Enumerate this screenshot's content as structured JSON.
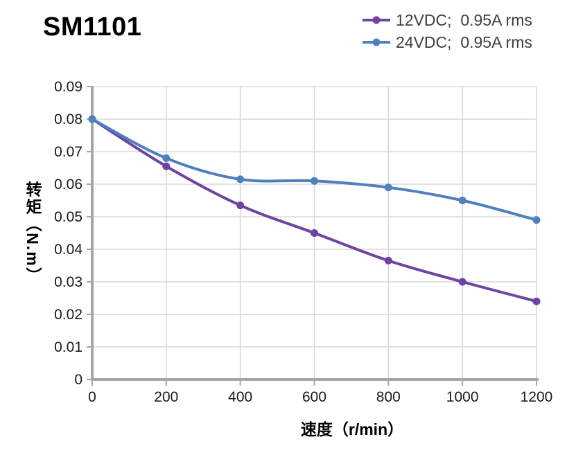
{
  "header": {
    "title": "SM1101"
  },
  "chart_data": {
    "type": "line",
    "title": "SM1101",
    "xlabel": "速度（r/min）",
    "ylabel": "转矩（N.m）",
    "x": [
      0,
      200,
      400,
      600,
      800,
      1000,
      1200
    ],
    "series": [
      {
        "name": "12VDC;  0.95A rms",
        "color": "#7042a3",
        "values": [
          0.08,
          0.0655,
          0.0535,
          0.045,
          0.0365,
          0.03,
          0.024
        ]
      },
      {
        "name": "24VDC;  0.95A rms",
        "color": "#4e80be",
        "values": [
          0.08,
          0.068,
          0.0615,
          0.061,
          0.059,
          0.055,
          0.049
        ]
      }
    ],
    "xlim": [
      0,
      1200
    ],
    "ylim": [
      0,
      0.09
    ],
    "xticks": [
      0,
      200,
      400,
      600,
      800,
      1000,
      1200
    ],
    "xtick_labels": [
      "0",
      "200",
      "400",
      "600",
      "800",
      "1000",
      "1200"
    ],
    "yticks": [
      0,
      0.01,
      0.02,
      0.03,
      0.04,
      0.05,
      0.06,
      0.07,
      0.08,
      0.09
    ],
    "ytick_labels": [
      "0",
      "0.01",
      "0.02",
      "0.03",
      "0.04",
      "0.05",
      "0.06",
      "0.07",
      "0.08",
      "0.09"
    ],
    "grid": true,
    "smooth": true,
    "marker": "circle",
    "legend_position": "top-right"
  },
  "colors": {
    "background": "#ffffff",
    "grid": "#d9d9d9",
    "axis": "#a6a6a6",
    "tick_text": "#1a1a1a",
    "legend_text": "#3f3f3f",
    "title_text": "#000000"
  }
}
